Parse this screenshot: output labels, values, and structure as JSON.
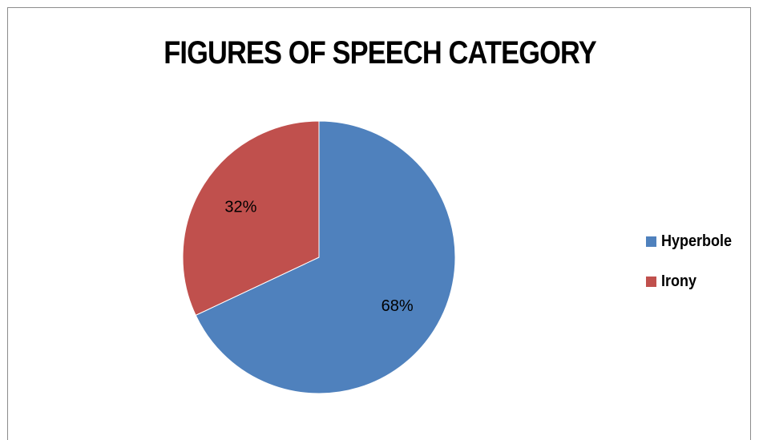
{
  "chart_data": {
    "type": "pie",
    "title": "FIGURES OF SPEECH CATEGORY",
    "categories": [
      "Hyperbole",
      "Irony"
    ],
    "values": [
      68,
      32
    ],
    "data_labels": [
      "68%",
      "32%"
    ],
    "colors": [
      "#4f81bd",
      "#c0504d"
    ],
    "legend": {
      "position": "right",
      "items": [
        {
          "label": "Hyperbole",
          "color": "#4f81bd"
        },
        {
          "label": "Irony",
          "color": "#c0504d"
        }
      ]
    }
  }
}
